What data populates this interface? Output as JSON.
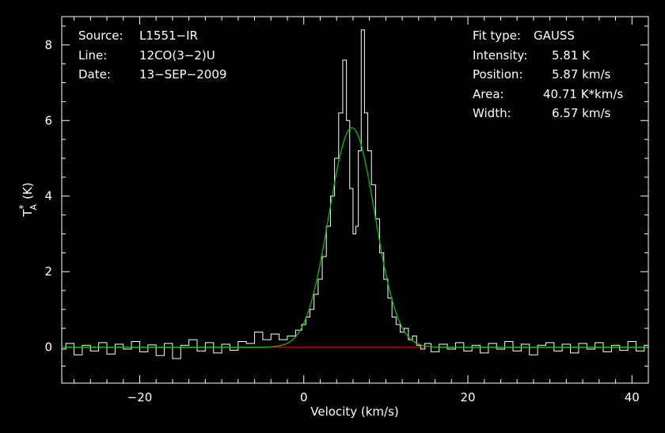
{
  "chart_data": {
    "type": "line",
    "xlabel": "Velocity (km/s)",
    "ylabel_main": "T",
    "ylabel_sup": "*",
    "ylabel_sub": "A",
    "ylabel_unit": "(K)",
    "xlim": [
      -29.5,
      42.0
    ],
    "ylim": [
      -0.95,
      8.75
    ],
    "x_ticks": [
      -20,
      0,
      20,
      40
    ],
    "x_tick_labels": [
      "−20",
      "0",
      "20",
      "40"
    ],
    "y_ticks": [
      0,
      2,
      4,
      6,
      8
    ],
    "y_tick_labels": [
      "0",
      "2",
      "4",
      "6",
      "8"
    ],
    "x_minor_step": 2,
    "y_minor_step": 0.5,
    "info_left": [
      {
        "label": "Source:",
        "value": "L1551−IR"
      },
      {
        "label": "Line:",
        "value": "12CO(3−2)U"
      },
      {
        "label": "Date:",
        "value": "13−SEP−2009"
      }
    ],
    "info_right": [
      {
        "label": "Fit type:",
        "value": "GAUSS"
      },
      {
        "label": "Intensity:",
        "value": "5.81 K"
      },
      {
        "label": "Position:",
        "value": "5.87 km/s"
      },
      {
        "label": "Area:",
        "value": "40.71 K*km/s"
      },
      {
        "label": "Width:",
        "value": "6.57 km/s"
      }
    ],
    "spectrum": {
      "color": "#ffffff",
      "points": [
        [
          -29.5,
          -0.05
        ],
        [
          -28.5,
          0.1
        ],
        [
          -27.5,
          -0.2
        ],
        [
          -26.5,
          0.05
        ],
        [
          -25.5,
          -0.1
        ],
        [
          -24.5,
          0.12
        ],
        [
          -23.5,
          -0.18
        ],
        [
          -22.5,
          0.08
        ],
        [
          -21.5,
          -0.05
        ],
        [
          -20.5,
          0.15
        ],
        [
          -19.5,
          -0.12
        ],
        [
          -18.5,
          0.06
        ],
        [
          -17.5,
          -0.22
        ],
        [
          -16.5,
          0.1
        ],
        [
          -15.5,
          -0.3
        ],
        [
          -14.5,
          0.05
        ],
        [
          -13.5,
          0.2
        ],
        [
          -12.5,
          -0.1
        ],
        [
          -11.5,
          0.12
        ],
        [
          -10.5,
          -0.15
        ],
        [
          -9.5,
          0.08
        ],
        [
          -8.5,
          -0.08
        ],
        [
          -7.5,
          0.15
        ],
        [
          -6.5,
          0.1
        ],
        [
          -5.5,
          0.4
        ],
        [
          -4.5,
          0.2
        ],
        [
          -3.5,
          0.35
        ],
        [
          -2.5,
          0.2
        ],
        [
          -1.5,
          0.3
        ],
        [
          -0.5,
          0.45
        ],
        [
          0.0,
          0.6
        ],
        [
          0.5,
          0.8
        ],
        [
          1.0,
          1.0
        ],
        [
          1.5,
          1.4
        ],
        [
          2.0,
          1.8
        ],
        [
          2.5,
          2.4
        ],
        [
          3.0,
          3.2
        ],
        [
          3.5,
          4.0
        ],
        [
          4.0,
          5.0
        ],
        [
          4.5,
          6.2
        ],
        [
          5.0,
          7.6
        ],
        [
          5.4,
          6.0
        ],
        [
          5.8,
          4.2
        ],
        [
          6.2,
          3.0
        ],
        [
          6.5,
          3.2
        ],
        [
          6.8,
          5.2
        ],
        [
          7.2,
          8.4
        ],
        [
          7.6,
          6.2
        ],
        [
          8.0,
          5.2
        ],
        [
          8.5,
          4.3
        ],
        [
          9.0,
          3.4
        ],
        [
          9.5,
          2.5
        ],
        [
          10.0,
          1.8
        ],
        [
          10.5,
          1.3
        ],
        [
          11.0,
          0.8
        ],
        [
          11.5,
          0.6
        ],
        [
          12.0,
          0.4
        ],
        [
          12.5,
          0.5
        ],
        [
          13.0,
          0.2
        ],
        [
          13.5,
          0.3
        ],
        [
          14.0,
          0.05
        ],
        [
          14.5,
          -0.05
        ],
        [
          15.0,
          0.1
        ],
        [
          16.0,
          -0.12
        ],
        [
          17.0,
          0.08
        ],
        [
          18.0,
          -0.05
        ],
        [
          19.0,
          0.12
        ],
        [
          20.0,
          -0.1
        ],
        [
          21.0,
          0.05
        ],
        [
          22.0,
          -0.15
        ],
        [
          23.0,
          0.1
        ],
        [
          24.0,
          -0.05
        ],
        [
          25.0,
          0.15
        ],
        [
          26.0,
          -0.1
        ],
        [
          27.0,
          0.08
        ],
        [
          28.0,
          -0.2
        ],
        [
          29.0,
          0.05
        ],
        [
          30.0,
          0.12
        ],
        [
          31.0,
          -0.1
        ],
        [
          32.0,
          0.08
        ],
        [
          33.0,
          -0.15
        ],
        [
          34.0,
          0.1
        ],
        [
          35.0,
          -0.05
        ],
        [
          36.0,
          0.12
        ],
        [
          37.0,
          -0.12
        ],
        [
          38.0,
          0.05
        ],
        [
          39.0,
          -0.08
        ],
        [
          40.0,
          0.15
        ],
        [
          41.0,
          -0.1
        ],
        [
          42.0,
          0.05
        ]
      ]
    },
    "gaussian_fit": {
      "color": "#00cc00",
      "amplitude": 5.81,
      "center": 5.87,
      "fwhm": 6.57
    },
    "baseline": {
      "color": "#cc0000",
      "x_range": [
        -5.0,
        15.0
      ],
      "value": 0.0
    }
  }
}
